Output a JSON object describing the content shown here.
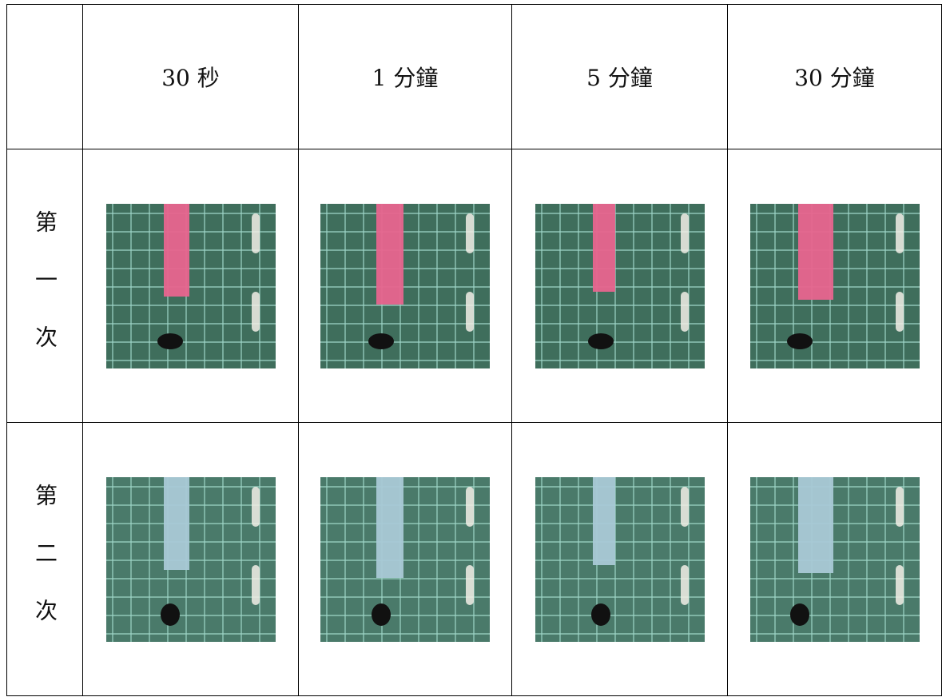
{
  "table": {
    "header": [
      "30 秒",
      "1 分鐘",
      "5 分鐘",
      "30 分鐘"
    ],
    "rows": [
      {
        "label": "第一次"
      },
      {
        "label": "第二次"
      }
    ]
  }
}
